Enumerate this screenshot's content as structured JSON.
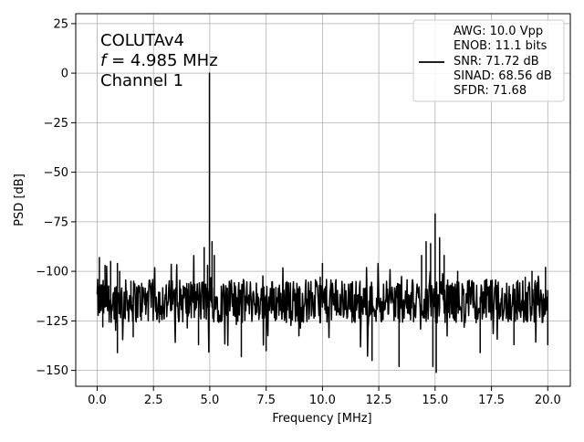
{
  "chart_data": {
    "type": "line",
    "annotation_lines": [
      "COLUTAv4",
      "= 4.985 MHz",
      "Channel 1"
    ],
    "annotation_var": "f",
    "xlabel": "Frequency [MHz]",
    "ylabel": "PSD [dB]",
    "xlim": [
      -0.95,
      21.0
    ],
    "ylim": [
      -158,
      30
    ],
    "xticks": [
      0.0,
      2.5,
      5.0,
      7.5,
      10.0,
      12.5,
      15.0,
      17.5,
      20.0
    ],
    "xtick_labels": [
      "0.0",
      "2.5",
      "5.0",
      "7.5",
      "10.0",
      "12.5",
      "15.0",
      "17.5",
      "20.0"
    ],
    "yticks": [
      25,
      0,
      -25,
      -50,
      -75,
      -100,
      -125,
      -150
    ],
    "ytick_labels": [
      "25",
      "0",
      "−25",
      "−50",
      "−75",
      "−100",
      "−125",
      "−150"
    ],
    "grid": true,
    "legend_position": "top-right",
    "legend_lines": [
      "AWG: 10.0 Vpp",
      "ENOB: 11.1 bits",
      "SNR: 71.72 dB",
      "SINAD: 68.56 dB",
      "SFDR: 71.68"
    ],
    "series_color": "#000000",
    "noise_floor": {
      "x_range": [
        0.0,
        20.0
      ],
      "mean_db": -115,
      "min_db": -151,
      "max_db": -92,
      "points": 900
    },
    "peaks": [
      {
        "x": 0.1,
        "y": -93
      },
      {
        "x": 0.35,
        "y": -97
      },
      {
        "x": 0.6,
        "y": -95
      },
      {
        "x": 0.9,
        "y": -96
      },
      {
        "x": 1.0,
        "y": -100
      },
      {
        "x": 1.5,
        "y": -105
      },
      {
        "x": 4.985,
        "y": 0
      },
      {
        "x": 4.75,
        "y": -88
      },
      {
        "x": 5.1,
        "y": -85
      },
      {
        "x": 5.2,
        "y": -92
      },
      {
        "x": 4.9,
        "y": -97
      },
      {
        "x": 9.9,
        "y": -103
      },
      {
        "x": 10.0,
        "y": -96
      },
      {
        "x": 14.4,
        "y": -92
      },
      {
        "x": 14.6,
        "y": -85
      },
      {
        "x": 14.8,
        "y": -86
      },
      {
        "x": 15.0,
        "y": -71
      },
      {
        "x": 15.2,
        "y": -83
      },
      {
        "x": 15.4,
        "y": -92
      },
      {
        "x": 16.0,
        "y": -100
      },
      {
        "x": 16.5,
        "y": -105
      },
      {
        "x": 19.0,
        "y": -103
      },
      {
        "x": 19.3,
        "y": -100
      },
      {
        "x": 19.9,
        "y": -98
      }
    ],
    "troughs": [
      {
        "x": 0.25,
        "y": -128
      },
      {
        "x": 0.9,
        "y": -141
      },
      {
        "x": 1.6,
        "y": -133
      },
      {
        "x": 4.5,
        "y": -137
      },
      {
        "x": 6.4,
        "y": -143
      },
      {
        "x": 7.5,
        "y": -140
      },
      {
        "x": 12.2,
        "y": -145
      },
      {
        "x": 13.4,
        "y": -148
      },
      {
        "x": 14.9,
        "y": -148
      },
      {
        "x": 15.05,
        "y": -151
      },
      {
        "x": 17.0,
        "y": -141
      },
      {
        "x": 18.5,
        "y": -137
      },
      {
        "x": 20.0,
        "y": -137
      }
    ]
  }
}
